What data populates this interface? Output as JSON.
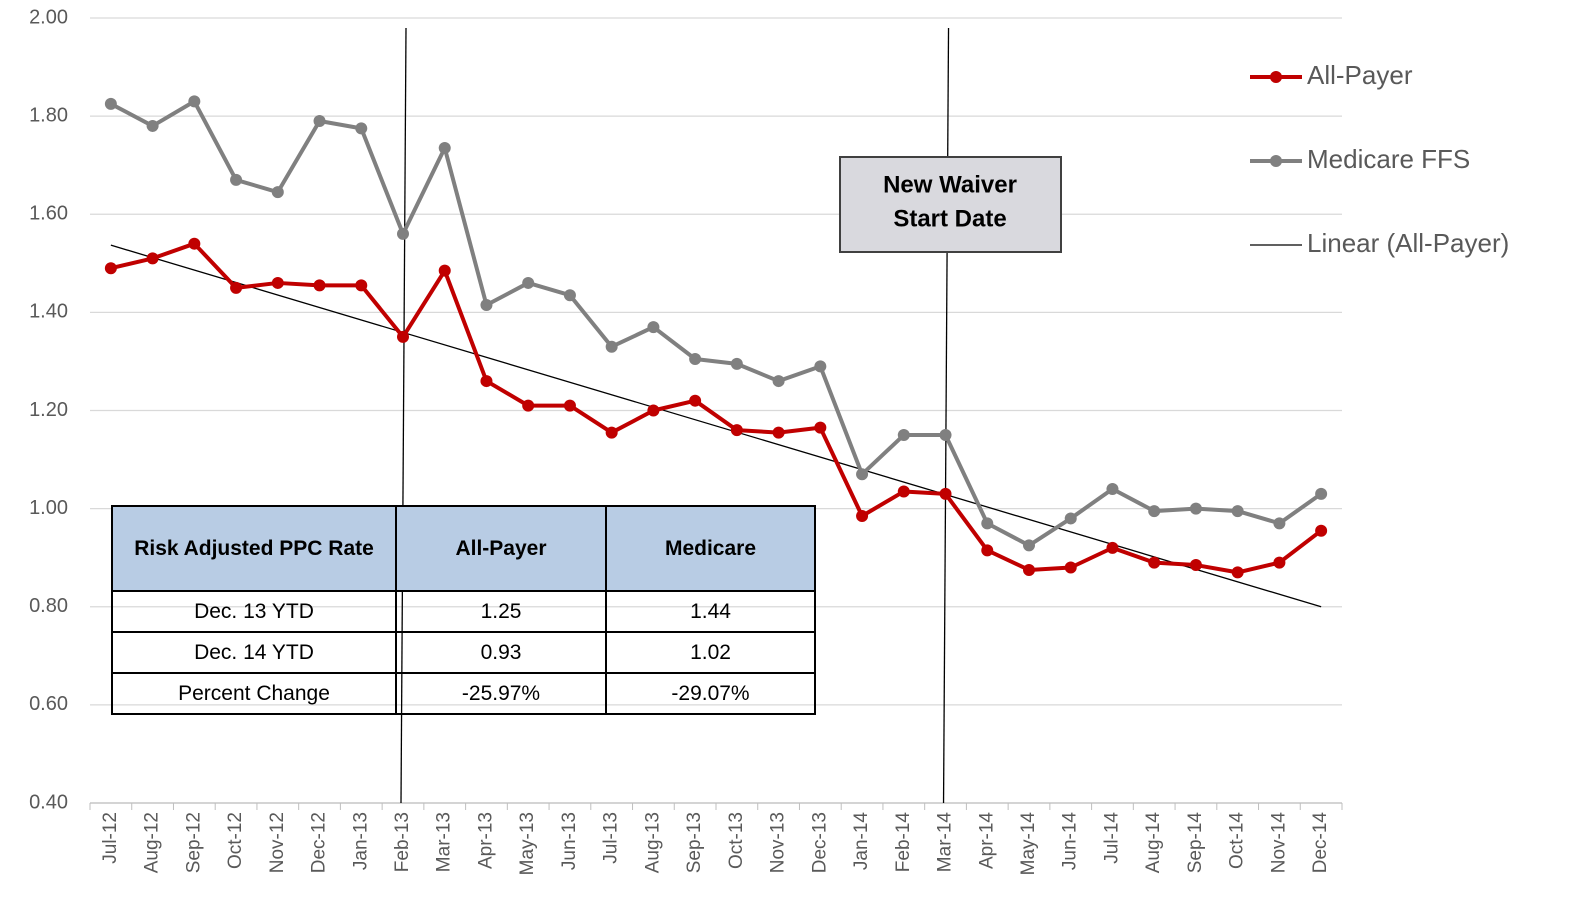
{
  "chart_data": {
    "type": "line",
    "categories": [
      "Jul-12",
      "Aug-12",
      "Sep-12",
      "Oct-12",
      "Nov-12",
      "Dec-12",
      "Jan-13",
      "Feb-13",
      "Mar-13",
      "Apr-13",
      "May-13",
      "Jun-13",
      "Jul-13",
      "Aug-13",
      "Sep-13",
      "Oct-13",
      "Nov-13",
      "Dec-13",
      "Jan-14",
      "Feb-14",
      "Mar-14",
      "Apr-14",
      "May-14",
      "Jun-14",
      "Jul-14",
      "Aug-14",
      "Sep-14",
      "Oct-14",
      "Nov-14",
      "Dec-14"
    ],
    "series": [
      {
        "name": "All-Payer",
        "color": "#c00000",
        "values": [
          1.49,
          1.51,
          1.54,
          1.45,
          1.46,
          1.455,
          1.455,
          1.35,
          1.485,
          1.26,
          1.21,
          1.21,
          1.155,
          1.2,
          1.22,
          1.16,
          1.155,
          1.165,
          0.985,
          1.035,
          1.03,
          0.915,
          0.875,
          0.88,
          0.92,
          0.89,
          0.885,
          0.87,
          0.89,
          0.955
        ]
      },
      {
        "name": "Medicare FFS",
        "color": "#808080",
        "values": [
          1.825,
          1.78,
          1.83,
          1.67,
          1.645,
          1.79,
          1.775,
          1.56,
          1.735,
          1.415,
          1.46,
          1.435,
          1.33,
          1.37,
          1.305,
          1.295,
          1.26,
          1.29,
          1.07,
          1.15,
          1.15,
          0.97,
          0.925,
          0.98,
          1.04,
          0.995,
          1.0,
          0.995,
          0.97,
          1.03
        ]
      }
    ],
    "trendline": {
      "name": "Linear (All-Payer)",
      "color": "#000000",
      "start": 1.537,
      "end": 0.8
    },
    "reference_lines": [
      "Feb-13",
      "Mar-14"
    ],
    "annotation": [
      "New Waiver",
      "Start Date"
    ],
    "ylim": [
      0.4,
      2.0
    ],
    "yticks": [
      {
        "value": 0.4,
        "label": "0.40"
      },
      {
        "value": 0.6,
        "label": "0.60"
      },
      {
        "value": 0.8,
        "label": "0.80"
      },
      {
        "value": 1.0,
        "label": "1.00"
      },
      {
        "value": 1.2,
        "label": "1.20"
      },
      {
        "value": 1.4,
        "label": "1.40"
      },
      {
        "value": 1.6,
        "label": "1.60"
      },
      {
        "value": 1.8,
        "label": "1.80"
      },
      {
        "value": 2.0,
        "label": "2.00"
      }
    ],
    "grid": true,
    "legend": "right",
    "table": {
      "header": [
        "Risk Adjusted PPC Rate",
        "All-Payer",
        "Medicare"
      ],
      "rows": [
        [
          "Dec. 13 YTD",
          "1.25",
          "1.44"
        ],
        [
          "Dec. 14 YTD",
          "0.93",
          "1.02"
        ],
        [
          "Percent Change",
          "-25.97%",
          "-29.07%"
        ]
      ]
    }
  }
}
